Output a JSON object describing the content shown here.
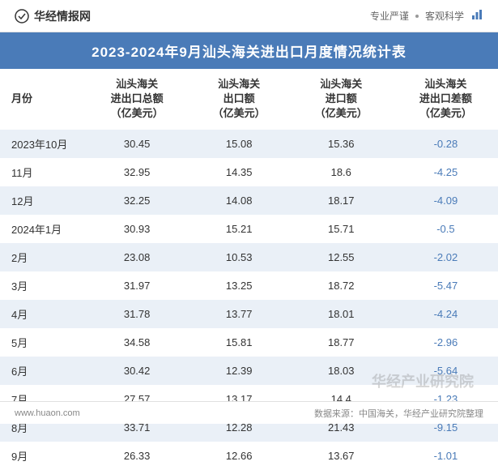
{
  "header": {
    "logo_text": "华经情报网",
    "tagline_left": "专业严谨",
    "tagline_right": "客观科学"
  },
  "title": "2023-2024年9月汕头海关进出口月度情况统计表",
  "table": {
    "columns": [
      "月份",
      "汕头海关进出口总额（亿美元）",
      "汕头海关出口额（亿美元）",
      "汕头海关进口额（亿美元）",
      "汕头海关进出口差额（亿美元）"
    ],
    "column_widths_pct": [
      17,
      21,
      20,
      21,
      21
    ],
    "rows": [
      {
        "month": "2023年10月",
        "total": "30.45",
        "export": "15.08",
        "import": "15.36",
        "diff": "-0.28"
      },
      {
        "month": "11月",
        "total": "32.95",
        "export": "14.35",
        "import": "18.6",
        "diff": "-4.25"
      },
      {
        "month": "12月",
        "total": "32.25",
        "export": "14.08",
        "import": "18.17",
        "diff": "-4.09"
      },
      {
        "month": "2024年1月",
        "total": "30.93",
        "export": "15.21",
        "import": "15.71",
        "diff": "-0.5"
      },
      {
        "month": "2月",
        "total": "23.08",
        "export": "10.53",
        "import": "12.55",
        "diff": "-2.02"
      },
      {
        "month": "3月",
        "total": "31.97",
        "export": "13.25",
        "import": "18.72",
        "diff": "-5.47"
      },
      {
        "month": "4月",
        "total": "31.78",
        "export": "13.77",
        "import": "18.01",
        "diff": "-4.24"
      },
      {
        "month": "5月",
        "total": "34.58",
        "export": "15.81",
        "import": "18.77",
        "diff": "-2.96"
      },
      {
        "month": "6月",
        "total": "30.42",
        "export": "12.39",
        "import": "18.03",
        "diff": "-5.64"
      },
      {
        "month": "7月",
        "total": "27.57",
        "export": "13.17",
        "import": "14.4",
        "diff": "-1.23"
      },
      {
        "month": "8月",
        "total": "33.71",
        "export": "12.28",
        "import": "21.43",
        "diff": "-9.15"
      },
      {
        "month": "9月",
        "total": "26.33",
        "export": "12.66",
        "import": "13.67",
        "diff": "-1.01"
      }
    ]
  },
  "footer": {
    "site": "www.huaon.com",
    "source": "数据来源：中国海关，华经产业研究院整理"
  },
  "watermark": "华经产业研究院",
  "colors": {
    "title_bg": "#4a7bb8",
    "title_fg": "#ffffff",
    "row_odd_bg": "#eaf0f7",
    "row_even_bg": "#ffffff",
    "text_primary": "#333333",
    "text_secondary": "#888888",
    "negative": "#4a7bb8",
    "border": "#e0e0e0"
  },
  "typography": {
    "title_fontsize_pt": 13,
    "header_fontsize_pt": 10,
    "cell_fontsize_pt": 10,
    "footer_fontsize_pt": 8
  }
}
